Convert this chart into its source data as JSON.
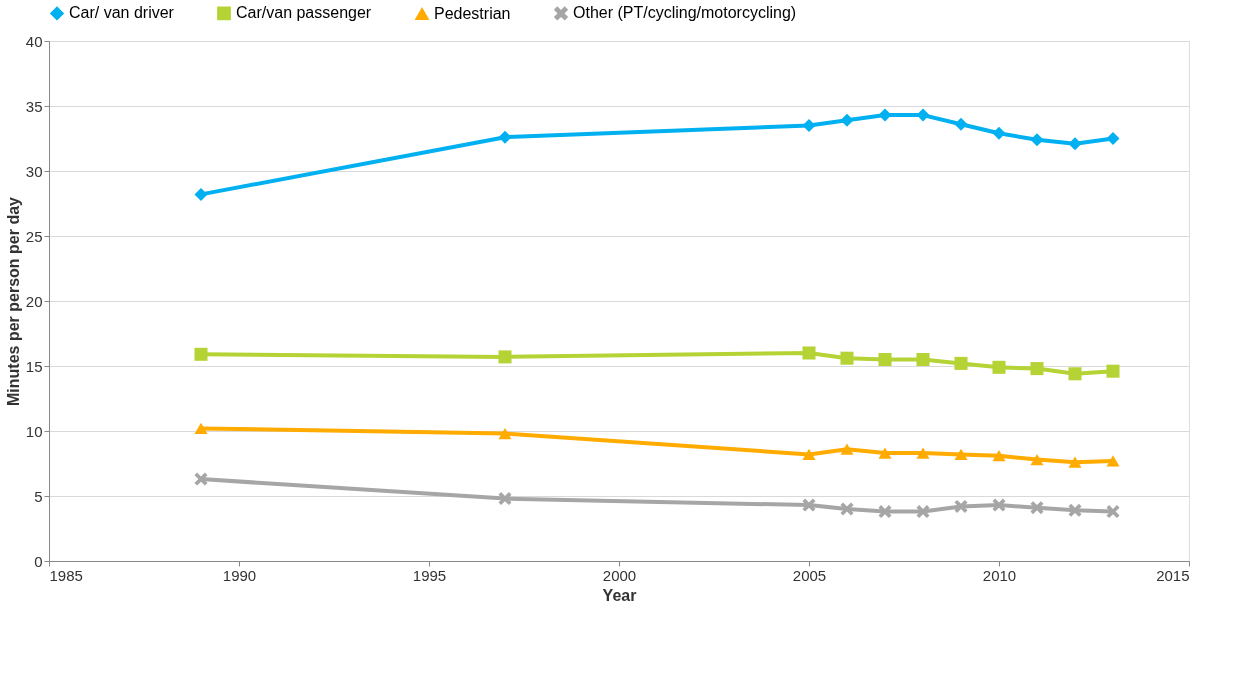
{
  "chart_data": {
    "type": "line",
    "xlabel": "Year",
    "ylabel": "Minutes per person per day",
    "x": [
      1989,
      1997,
      2005,
      2006,
      2007,
      2008,
      2009,
      2010,
      2011,
      2012,
      2013
    ],
    "series": [
      {
        "name": "Car/ van driver",
        "color": "#00b0f0",
        "marker": "diamond",
        "values": [
          28.2,
          32.6,
          33.5,
          33.9,
          34.3,
          34.3,
          33.6,
          32.9,
          32.4,
          32.1,
          32.5
        ]
      },
      {
        "name": "Car/van passenger",
        "color": "#b5d334",
        "marker": "square",
        "values": [
          15.9,
          15.7,
          16.0,
          15.6,
          15.5,
          15.5,
          15.2,
          14.9,
          14.8,
          14.4,
          14.6
        ]
      },
      {
        "name": "Pedestrian",
        "color": "#ffab00",
        "marker": "triangle",
        "values": [
          10.2,
          9.8,
          8.2,
          8.6,
          8.3,
          8.3,
          8.2,
          8.1,
          7.8,
          7.6,
          7.7
        ]
      },
      {
        "name": "Other (PT/cycling/motorcycling)",
        "color": "#a6a6a6",
        "marker": "cross",
        "values": [
          6.3,
          4.8,
          4.3,
          4.0,
          3.8,
          3.8,
          4.2,
          4.3,
          4.1,
          3.9,
          3.8
        ]
      }
    ],
    "xlim": [
      1985,
      2015
    ],
    "xticks": [
      1985,
      1990,
      1995,
      2000,
      2005,
      2010,
      2015
    ],
    "ylim": [
      0,
      40
    ],
    "yticks": [
      0,
      5,
      10,
      15,
      20,
      25,
      30,
      35,
      40
    ],
    "grid": "y",
    "legend": "top",
    "line_style": "solid"
  }
}
